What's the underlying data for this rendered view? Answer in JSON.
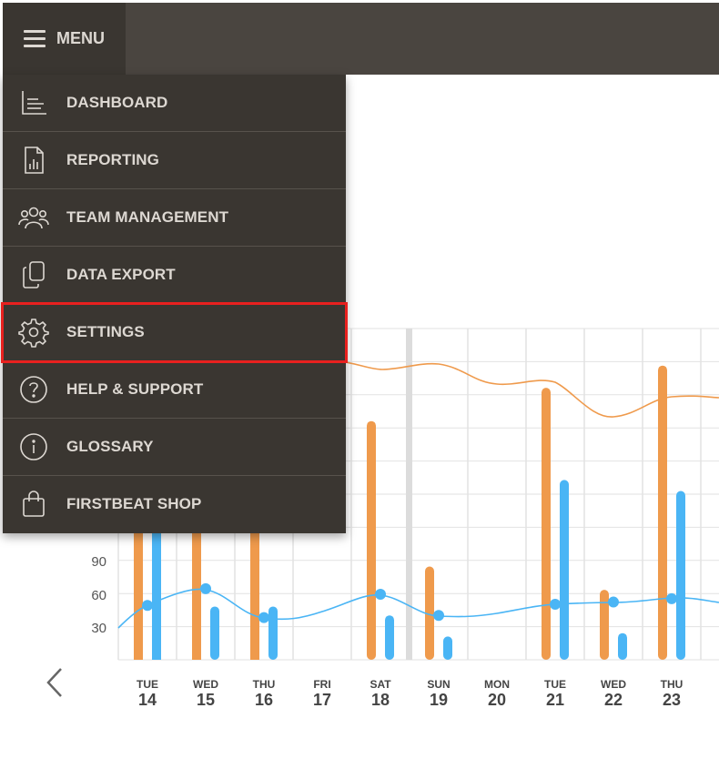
{
  "header": {
    "menu_label": "MENU"
  },
  "menu": {
    "items": [
      {
        "label": "DASHBOARD",
        "icon": "chart-axes-icon"
      },
      {
        "label": "REPORTING",
        "icon": "report-document-icon"
      },
      {
        "label": "TEAM MANAGEMENT",
        "icon": "team-people-icon"
      },
      {
        "label": "DATA EXPORT",
        "icon": "copy-documents-icon"
      },
      {
        "label": "SETTINGS",
        "icon": "gear-icon",
        "highlighted": true
      },
      {
        "label": "HELP & SUPPORT",
        "icon": "question-circle-icon"
      },
      {
        "label": "GLOSSARY",
        "icon": "info-circle-icon"
      },
      {
        "label": "FIRSTBEAT SHOP",
        "icon": "shopping-bag-icon"
      }
    ]
  },
  "colors": {
    "orange": "#ef9a4c",
    "blue": "#4ab5f5",
    "menu_bg": "#3a3631",
    "topbar": "#4a4540",
    "highlight": "#e8211f"
  },
  "chart_data": {
    "type": "bar",
    "days": [
      {
        "dow": "TUE",
        "date": "14"
      },
      {
        "dow": "WED",
        "date": "15"
      },
      {
        "dow": "THU",
        "date": "16"
      },
      {
        "dow": "FRI",
        "date": "17"
      },
      {
        "dow": "SAT",
        "date": "18"
      },
      {
        "dow": "SUN",
        "date": "19"
      },
      {
        "dow": "MON",
        "date": "20"
      },
      {
        "dow": "TUE",
        "date": "21"
      },
      {
        "dow": "WED",
        "date": "22"
      },
      {
        "dow": "THU",
        "date": "23"
      }
    ],
    "y_ticks": [
      "90",
      "60",
      "30"
    ],
    "ylim": [
      0,
      330
    ],
    "series": [
      {
        "color": "#ef9a4c",
        "values": [
          null,
          null,
          null,
          0,
          215,
          84,
          0,
          245,
          63,
          265
        ]
      },
      {
        "color": "#4ab5f5",
        "values": [
          null,
          48,
          48,
          0,
          40,
          21,
          0,
          162,
          24,
          152
        ]
      }
    ],
    "blue_line_points": [
      49,
      64,
      38,
      null,
      59,
      40,
      null,
      50,
      52,
      55
    ],
    "orange_line_top": true
  }
}
